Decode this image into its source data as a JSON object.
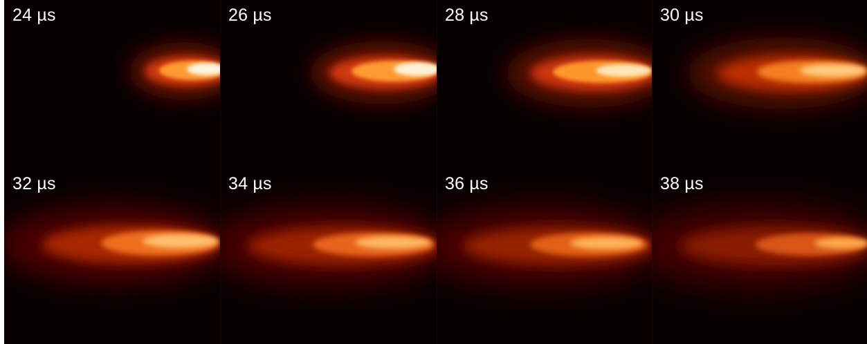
{
  "image": {
    "colors": {
      "background": "#050000",
      "glow_dark": "#6b0a00",
      "glow_mid": "#e24a10",
      "glow_bright": "#ffb040",
      "core": "#fff8e8",
      "label": "#ffffff"
    },
    "frames": [
      {
        "label": "24 µs",
        "time_us": 24
      },
      {
        "label": "26 µs",
        "time_us": 26
      },
      {
        "label": "28 µs",
        "time_us": 28
      },
      {
        "label": "30 µs",
        "time_us": 30
      },
      {
        "label": "32 µs",
        "time_us": 32
      },
      {
        "label": "34 µs",
        "time_us": 34
      },
      {
        "label": "36 µs",
        "time_us": 36
      },
      {
        "label": "38 µs",
        "time_us": 38
      }
    ]
  }
}
